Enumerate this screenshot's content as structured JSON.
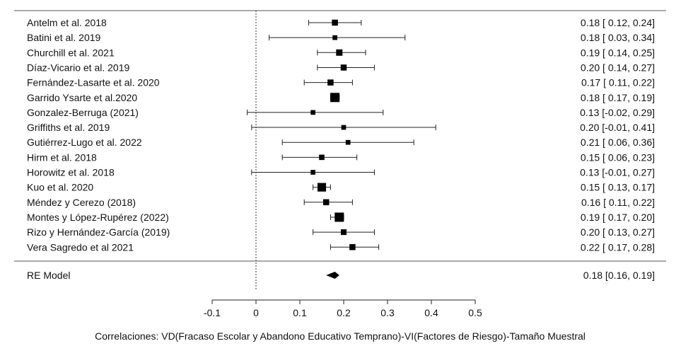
{
  "chart_data": {
    "type": "forest",
    "xlabel": "Correlaciones: VD(Fracaso Escolar y Abandono Educativo Temprano)-VI(Factores de Riesgo)-Tamaño Muestral",
    "xlim": [
      -0.1,
      0.5
    ],
    "xticks": [
      "-0.1",
      "0",
      "0.1",
      "0.2",
      "0.3",
      "0.4",
      "0.5"
    ],
    "reference_line": 0,
    "studies": [
      {
        "label": "Antelm et al. 2018",
        "estimate": 0.18,
        "lower": 0.12,
        "upper": 0.24,
        "weight": 0.5,
        "text": "0.18 [ 0.12, 0.24]"
      },
      {
        "label": "Batini et al. 2019",
        "estimate": 0.18,
        "lower": 0.03,
        "upper": 0.34,
        "weight": 0.3,
        "text": "0.18 [ 0.03, 0.34]"
      },
      {
        "label": "Churchill et al. 2021",
        "estimate": 0.19,
        "lower": 0.14,
        "upper": 0.25,
        "weight": 0.55,
        "text": "0.19 [ 0.14, 0.25]"
      },
      {
        "label": "Díaz-Vicario et al. 2019",
        "estimate": 0.2,
        "lower": 0.14,
        "upper": 0.27,
        "weight": 0.5,
        "text": "0.20 [ 0.14, 0.27]"
      },
      {
        "label": "Fernández-Lasarte et al. 2020",
        "estimate": 0.17,
        "lower": 0.11,
        "upper": 0.22,
        "weight": 0.5,
        "text": "0.17 [ 0.11, 0.22]"
      },
      {
        "label": "Garrido Ysarte et al.2020",
        "estimate": 0.18,
        "lower": 0.17,
        "upper": 0.19,
        "weight": 1.0,
        "text": "0.18 [ 0.17, 0.19]"
      },
      {
        "label": "Gonzalez-Berruga (2021)",
        "estimate": 0.13,
        "lower": -0.02,
        "upper": 0.29,
        "weight": 0.3,
        "text": "0.13 [-0.02, 0.29]"
      },
      {
        "label": "Griffiths et al. 2019",
        "estimate": 0.2,
        "lower": -0.01,
        "upper": 0.41,
        "weight": 0.3,
        "text": "0.20 [-0.01, 0.41]"
      },
      {
        "label": "Gutiérrez-Lugo et al. 2022",
        "estimate": 0.21,
        "lower": 0.06,
        "upper": 0.36,
        "weight": 0.3,
        "text": "0.21 [ 0.06, 0.36]"
      },
      {
        "label": "Hirm et al. 2018",
        "estimate": 0.15,
        "lower": 0.06,
        "upper": 0.23,
        "weight": 0.4,
        "text": "0.15 [ 0.06, 0.23]"
      },
      {
        "label": "Horowitz et al. 2018",
        "estimate": 0.13,
        "lower": -0.01,
        "upper": 0.27,
        "weight": 0.3,
        "text": "0.13 [-0.01, 0.27]"
      },
      {
        "label": "Kuo et al. 2020",
        "estimate": 0.15,
        "lower": 0.13,
        "upper": 0.17,
        "weight": 0.9,
        "text": "0.15 [ 0.13, 0.17]"
      },
      {
        "label": "Méndez y Cerezo (2018)",
        "estimate": 0.16,
        "lower": 0.11,
        "upper": 0.22,
        "weight": 0.5,
        "text": "0.16 [ 0.11, 0.22]"
      },
      {
        "label": "Montes y López-Rupérez (2022)",
        "estimate": 0.19,
        "lower": 0.17,
        "upper": 0.2,
        "weight": 1.0,
        "text": "0.19 [ 0.17, 0.20]"
      },
      {
        "label": "Rizo y Hernández-García (2019)",
        "estimate": 0.2,
        "lower": 0.13,
        "upper": 0.27,
        "weight": 0.45,
        "text": "0.20 [ 0.13, 0.27]"
      },
      {
        "label": "Vera Sagredo et al 2021",
        "estimate": 0.22,
        "lower": 0.17,
        "upper": 0.28,
        "weight": 0.5,
        "text": "0.22 [ 0.17, 0.28]"
      }
    ],
    "summary": {
      "label": "RE Model",
      "estimate": 0.18,
      "lower": 0.16,
      "upper": 0.19,
      "text": "0.18 [0.16, 0.19]"
    }
  }
}
